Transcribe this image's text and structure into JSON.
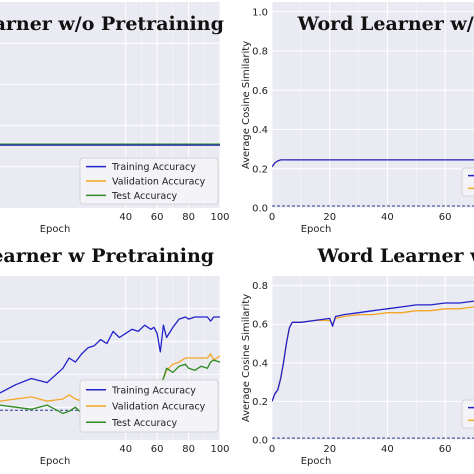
{
  "colors": {
    "training": "#2222cc",
    "validation": "#f5a623",
    "test": "#2e8b1f",
    "baseline": "#2a3a8a",
    "panel_bg": "#eaeaf2",
    "grid": "#ffffff"
  },
  "chart_data": [
    {
      "id": "tl",
      "type": "line",
      "title": "Learner w/o Pretraining",
      "xlabel": "Epoch",
      "ylabel": "",
      "xlim": [
        -40,
        100
      ],
      "ylim": [
        0,
        1.08
      ],
      "x_ticks": [
        40,
        60,
        80,
        100
      ],
      "y_ticks": [],
      "grid": true,
      "legend": "bottom-right",
      "baseline": 0.33,
      "series": [
        {
          "name": "Training Accuracy",
          "key": "training",
          "x": [
            -40,
            100
          ],
          "y": [
            0.33,
            0.33
          ]
        },
        {
          "name": "Validation Accuracy",
          "key": "validation",
          "x": [
            -40,
            100
          ],
          "y": [
            0.33,
            0.33
          ]
        },
        {
          "name": "Test Accuracy",
          "key": "test",
          "x": [
            -40,
            100
          ],
          "y": [
            0.335,
            0.335
          ]
        }
      ]
    },
    {
      "id": "tr",
      "type": "line",
      "title": "Word Learner w/o",
      "xlabel": "Epoch",
      "ylabel": "Average Cosine Similarity",
      "xlim": [
        0,
        70
      ],
      "ylim": [
        0,
        1.05
      ],
      "x_ticks": [
        0,
        20,
        40,
        60
      ],
      "y_ticks": [
        0.0,
        0.2,
        0.4,
        0.6,
        0.8,
        1.0
      ],
      "y_tick_labels": [
        "0.0",
        "0.2",
        "0.4",
        "0.6",
        "0.8",
        "1.0"
      ],
      "grid": true,
      "legend": "bottom-right",
      "baseline": 0.01,
      "series": [
        {
          "key": "training",
          "x": [
            0,
            1,
            2,
            3,
            5,
            10,
            20,
            40,
            70
          ],
          "y": [
            0.21,
            0.23,
            0.24,
            0.245,
            0.245,
            0.245,
            0.245,
            0.245,
            0.245
          ]
        },
        {
          "key": "validation",
          "x": [
            0,
            1,
            2,
            3,
            5,
            10,
            20,
            40,
            70
          ],
          "y": [
            0.21,
            0.23,
            0.24,
            0.245,
            0.245,
            0.245,
            0.245,
            0.245,
            0.245
          ]
        }
      ]
    },
    {
      "id": "bl",
      "type": "line",
      "title": "Learner w Pretraining",
      "xlabel": "Epoch",
      "ylabel": "",
      "xlim": [
        -40,
        100
      ],
      "ylim": [
        0.2,
        1.0
      ],
      "x_ticks": [
        40,
        60,
        80,
        100
      ],
      "y_ticks": [],
      "grid": true,
      "legend": "bottom-right",
      "baseline": 0.345,
      "series": [
        {
          "name": "Training Accuracy",
          "key": "training",
          "x": [
            -40,
            -30,
            -20,
            -10,
            0,
            4,
            8,
            12,
            16,
            20,
            24,
            28,
            32,
            36,
            40,
            44,
            48,
            52,
            56,
            58,
            60,
            62,
            64,
            66,
            70,
            74,
            78,
            80,
            84,
            88,
            92,
            94,
            96,
            100
          ],
          "y": [
            0.43,
            0.47,
            0.5,
            0.48,
            0.55,
            0.6,
            0.58,
            0.62,
            0.65,
            0.66,
            0.69,
            0.67,
            0.73,
            0.7,
            0.72,
            0.74,
            0.73,
            0.76,
            0.74,
            0.75,
            0.72,
            0.63,
            0.76,
            0.7,
            0.75,
            0.79,
            0.8,
            0.79,
            0.8,
            0.8,
            0.8,
            0.78,
            0.8,
            0.8
          ]
        },
        {
          "name": "Validation Accuracy",
          "key": "validation",
          "x": [
            -40,
            -30,
            -20,
            -10,
            0,
            4,
            8,
            12,
            16,
            20,
            24,
            28,
            32,
            36,
            40,
            44,
            48,
            52,
            56,
            58,
            60,
            62,
            64,
            66,
            70,
            74,
            78,
            80,
            84,
            88,
            92,
            94,
            96,
            100
          ],
          "y": [
            0.39,
            0.4,
            0.41,
            0.39,
            0.4,
            0.42,
            0.4,
            0.39,
            0.41,
            0.4,
            0.38,
            0.4,
            0.41,
            0.39,
            0.4,
            0.38,
            0.37,
            0.38,
            0.37,
            0.36,
            0.37,
            0.45,
            0.5,
            0.54,
            0.57,
            0.58,
            0.6,
            0.6,
            0.6,
            0.6,
            0.6,
            0.62,
            0.59,
            0.61
          ]
        },
        {
          "name": "Test Accuracy",
          "key": "test",
          "x": [
            -40,
            -30,
            -20,
            -10,
            0,
            4,
            8,
            12,
            16,
            20,
            24,
            28,
            32,
            36,
            40,
            44,
            48,
            52,
            56,
            58,
            60,
            62,
            64,
            66,
            70,
            74,
            78,
            80,
            84,
            88,
            92,
            94,
            96,
            100
          ],
          "y": [
            0.37,
            0.36,
            0.35,
            0.37,
            0.33,
            0.34,
            0.36,
            0.33,
            0.38,
            0.32,
            0.36,
            0.34,
            0.37,
            0.35,
            0.34,
            0.36,
            0.33,
            0.35,
            0.34,
            0.33,
            0.36,
            0.48,
            0.5,
            0.55,
            0.53,
            0.56,
            0.57,
            0.55,
            0.54,
            0.56,
            0.55,
            0.58,
            0.59,
            0.58
          ]
        }
      ]
    },
    {
      "id": "br",
      "type": "line",
      "title": "Word Learner w",
      "xlabel": "Epoch",
      "ylabel": "Average Cosine Similarity",
      "xlim": [
        0,
        70
      ],
      "ylim": [
        0,
        0.85
      ],
      "x_ticks": [
        0,
        20,
        40,
        60
      ],
      "y_ticks": [
        0.0,
        0.2,
        0.4,
        0.6,
        0.8
      ],
      "y_tick_labels": [
        "0.0",
        "0.2",
        "0.4",
        "0.6",
        "0.8"
      ],
      "grid": true,
      "legend": "bottom-right",
      "baseline": 0.01,
      "series": [
        {
          "key": "training",
          "x": [
            0,
            1,
            2,
            3,
            4,
            5,
            6,
            7,
            8,
            10,
            15,
            20,
            21,
            22,
            25,
            30,
            35,
            40,
            45,
            50,
            55,
            60,
            65,
            70
          ],
          "y": [
            0.2,
            0.24,
            0.26,
            0.32,
            0.4,
            0.5,
            0.58,
            0.61,
            0.61,
            0.61,
            0.62,
            0.63,
            0.59,
            0.64,
            0.65,
            0.66,
            0.67,
            0.68,
            0.69,
            0.7,
            0.7,
            0.71,
            0.71,
            0.72
          ]
        },
        {
          "key": "validation",
          "x": [
            0,
            1,
            2,
            3,
            4,
            5,
            6,
            7,
            8,
            10,
            15,
            20,
            21,
            22,
            25,
            30,
            35,
            40,
            45,
            50,
            55,
            60,
            65,
            70
          ],
          "y": [
            0.2,
            0.24,
            0.26,
            0.32,
            0.4,
            0.5,
            0.58,
            0.61,
            0.61,
            0.61,
            0.62,
            0.62,
            0.6,
            0.63,
            0.64,
            0.65,
            0.65,
            0.66,
            0.66,
            0.67,
            0.67,
            0.68,
            0.68,
            0.69
          ]
        }
      ]
    }
  ]
}
